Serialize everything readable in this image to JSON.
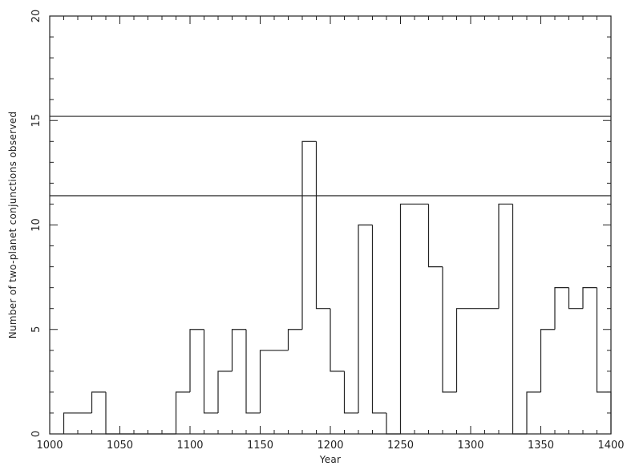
{
  "chart_data": {
    "type": "bar",
    "style": "step-histogram",
    "title": "",
    "xlabel": "Year",
    "ylabel": "Number of two-planet conjunctions observed",
    "xlim": [
      1000,
      1400
    ],
    "ylim": [
      0,
      20
    ],
    "xticks": [
      1000,
      1050,
      1100,
      1150,
      1200,
      1250,
      1300,
      1350,
      1400
    ],
    "yticks": [
      0,
      5,
      10,
      15,
      20
    ],
    "bin_width": 10,
    "bins": [
      {
        "start": 1010,
        "value": 1
      },
      {
        "start": 1020,
        "value": 1
      },
      {
        "start": 1030,
        "value": 2
      },
      {
        "start": 1040,
        "value": 0
      },
      {
        "start": 1050,
        "value": 0
      },
      {
        "start": 1060,
        "value": 0
      },
      {
        "start": 1070,
        "value": 0
      },
      {
        "start": 1080,
        "value": 0
      },
      {
        "start": 1090,
        "value": 2
      },
      {
        "start": 1100,
        "value": 5
      },
      {
        "start": 1110,
        "value": 1
      },
      {
        "start": 1120,
        "value": 3
      },
      {
        "start": 1130,
        "value": 5
      },
      {
        "start": 1140,
        "value": 1
      },
      {
        "start": 1150,
        "value": 4
      },
      {
        "start": 1160,
        "value": 4
      },
      {
        "start": 1170,
        "value": 5
      },
      {
        "start": 1180,
        "value": 14
      },
      {
        "start": 1190,
        "value": 6
      },
      {
        "start": 1200,
        "value": 3
      },
      {
        "start": 1210,
        "value": 1
      },
      {
        "start": 1220,
        "value": 10
      },
      {
        "start": 1230,
        "value": 1
      },
      {
        "start": 1240,
        "value": 0
      },
      {
        "start": 1250,
        "value": 11
      },
      {
        "start": 1260,
        "value": 11
      },
      {
        "start": 1270,
        "value": 8
      },
      {
        "start": 1280,
        "value": 2
      },
      {
        "start": 1290,
        "value": 6
      },
      {
        "start": 1300,
        "value": 6
      },
      {
        "start": 1310,
        "value": 6
      },
      {
        "start": 1320,
        "value": 11
      },
      {
        "start": 1330,
        "value": 0
      },
      {
        "start": 1340,
        "value": 2
      },
      {
        "start": 1350,
        "value": 5
      },
      {
        "start": 1360,
        "value": 7
      },
      {
        "start": 1370,
        "value": 6
      },
      {
        "start": 1380,
        "value": 7
      },
      {
        "start": 1390,
        "value": 2
      }
    ],
    "reference_lines": [
      {
        "y": 11.4
      },
      {
        "y": 15.2
      }
    ],
    "grid": false,
    "legend": "none",
    "line_color": "#222222",
    "background": "#ffffff"
  }
}
